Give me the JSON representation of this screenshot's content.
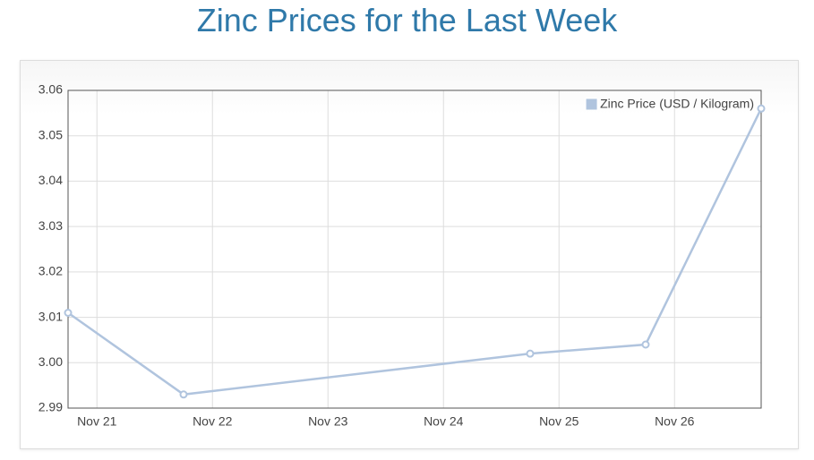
{
  "chart_data": {
    "type": "line",
    "title": "Zinc Prices for the Last Week",
    "x": [
      20.75,
      21.75,
      24.75,
      25.75,
      26.75
    ],
    "series": [
      {
        "name": "Zinc Price (USD / Kilogram)",
        "color": "#b0c4de",
        "values": [
          3.011,
          2.993,
          3.002,
          3.004,
          3.056
        ]
      }
    ],
    "xlim": [
      20.75,
      26.75
    ],
    "xticks": [
      {
        "value": 21,
        "label": "Nov 21"
      },
      {
        "value": 22,
        "label": "Nov 22"
      },
      {
        "value": 23,
        "label": "Nov 23"
      },
      {
        "value": 24,
        "label": "Nov 24"
      },
      {
        "value": 25,
        "label": "Nov 25"
      },
      {
        "value": 26,
        "label": "Nov 26"
      }
    ],
    "ylim": [
      2.99,
      3.06
    ],
    "yticks": [
      2.99,
      {
        "value": 3,
        "label": "3.00"
      },
      3.01,
      3.02,
      3.03,
      3.04,
      3.05,
      3.06
    ],
    "grid": true,
    "legend": "top-right"
  }
}
